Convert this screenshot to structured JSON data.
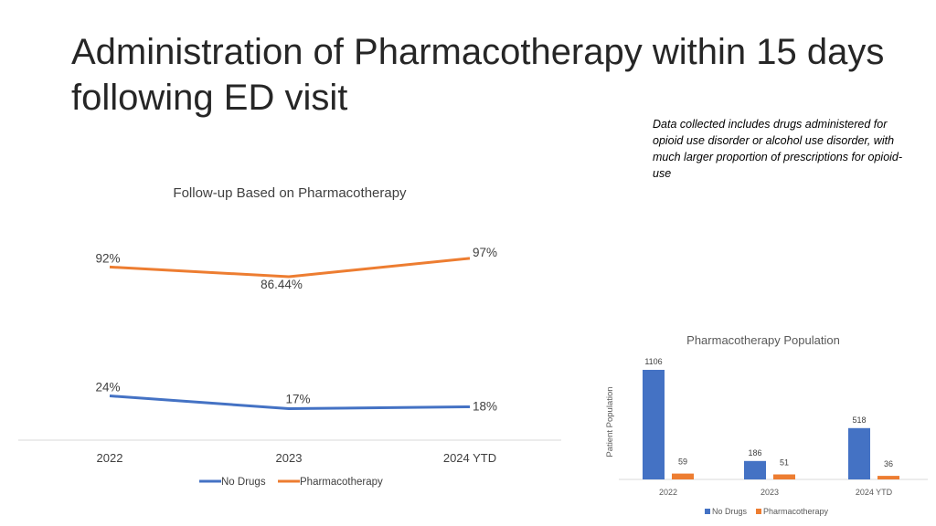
{
  "slide": {
    "title": "Administration of Pharmacotherapy within 15 days following ED visit",
    "note": "Data collected includes drugs administered for opioid use disorder or alcohol use disorder, with much larger proportion of prescriptions for opioid-use"
  },
  "chart_data": [
    {
      "type": "line",
      "title": "Follow-up Based on Pharmacotherapy",
      "categories": [
        "2022",
        "2023",
        "2024 YTD"
      ],
      "series": [
        {
          "name": "No Drugs",
          "values": [
            24,
            17,
            18
          ],
          "labels": [
            "24%",
            "17%",
            "18%"
          ],
          "color": "#4472C4"
        },
        {
          "name": "Pharmacotherapy",
          "values": [
            92,
            86.44,
            97
          ],
          "labels": [
            "92%",
            "86.44%",
            "97%"
          ],
          "color": "#ED7D31"
        }
      ],
      "legend": "bottom",
      "grid": false
    },
    {
      "type": "bar",
      "title": "Pharmacotherapy Population",
      "ylabel": "Patient Population",
      "categories": [
        "2022",
        "2023",
        "2024 YTD"
      ],
      "series": [
        {
          "name": "No Drugs",
          "values": [
            1106,
            186,
            518
          ],
          "color": "#4472C4"
        },
        {
          "name": "Pharmacotherapy",
          "values": [
            59,
            51,
            36
          ],
          "color": "#ED7D31"
        }
      ],
      "legend": "bottom",
      "grid": false
    }
  ]
}
